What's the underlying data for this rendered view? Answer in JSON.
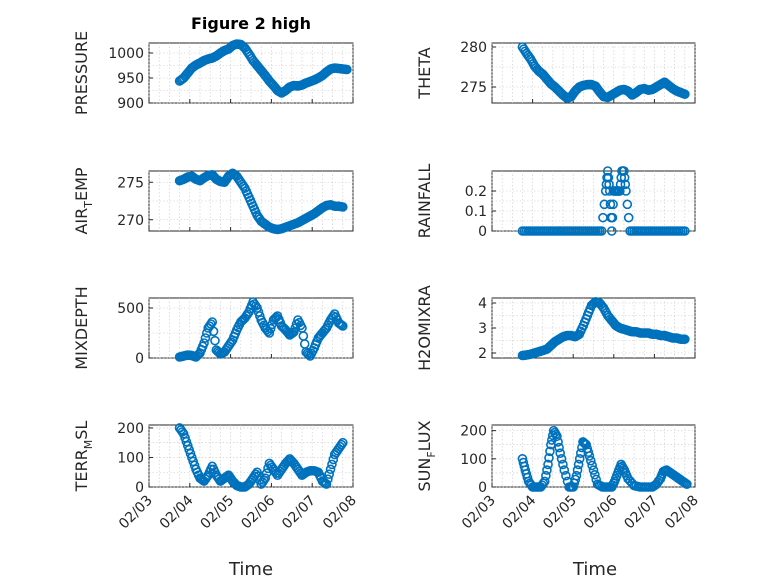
{
  "figure": {
    "title": "Figure 2 high",
    "xlabel": "Time"
  },
  "chart_data": [
    {
      "type": "scatter",
      "panel": "top-left",
      "ylabel": "PRESSURE",
      "title": "Figure 2 high",
      "xlim": [
        "02/03",
        "02/08"
      ],
      "xticks": [
        "02/03",
        "02/04",
        "02/05",
        "02/06",
        "02/07",
        "02/08"
      ],
      "ylim": [
        900,
        1020
      ],
      "yticks": [
        900,
        950,
        1000
      ],
      "x_days": [
        0.75,
        0.85,
        0.95,
        1.05,
        1.15,
        1.25,
        1.35,
        1.45,
        1.55,
        1.65,
        1.75,
        1.85,
        1.95,
        2.05,
        2.15,
        2.25,
        2.35,
        2.45,
        2.55,
        2.65,
        2.75,
        2.85,
        2.95,
        3.05,
        3.15,
        3.25,
        3.35,
        3.45,
        3.55,
        3.65,
        3.75,
        3.85,
        3.95,
        4.05,
        4.15,
        4.25,
        4.35,
        4.45,
        4.55,
        4.65,
        4.75,
        4.85
      ],
      "values": [
        944,
        950,
        960,
        970,
        976,
        980,
        985,
        988,
        990,
        994,
        1000,
        1005,
        1008,
        1015,
        1018,
        1017,
        1010,
        998,
        985,
        975,
        965,
        955,
        944,
        935,
        925,
        920,
        925,
        932,
        935,
        934,
        936,
        940,
        943,
        946,
        950,
        955,
        962,
        968,
        970,
        969,
        968,
        967
      ]
    },
    {
      "type": "scatter",
      "panel": "top-right",
      "ylabel": "THETA",
      "xlim": [
        "02/03",
        "02/08"
      ],
      "xticks": [
        "02/03",
        "02/04",
        "02/05",
        "02/06",
        "02/07",
        "02/08"
      ],
      "ylim": [
        273,
        280.5
      ],
      "yticks": [
        275,
        280
      ],
      "x_days": [
        0.75,
        0.85,
        0.95,
        1.05,
        1.15,
        1.25,
        1.35,
        1.45,
        1.55,
        1.65,
        1.75,
        1.85,
        1.95,
        2.05,
        2.15,
        2.25,
        2.35,
        2.45,
        2.55,
        2.65,
        2.75,
        2.85,
        2.95,
        3.05,
        3.15,
        3.25,
        3.35,
        3.45,
        3.55,
        3.65,
        3.75,
        3.85,
        3.95,
        4.05,
        4.15,
        4.25,
        4.35,
        4.45,
        4.55,
        4.65,
        4.75
      ],
      "values": [
        280,
        279.2,
        278.5,
        277.6,
        277,
        276.6,
        276,
        275.4,
        275,
        274.5,
        274,
        273.6,
        273.8,
        274.5,
        275,
        275.2,
        275.3,
        275.3,
        275.1,
        274.4,
        273.8,
        273.7,
        274.0,
        274.3,
        274.6,
        274.7,
        274.5,
        274.0,
        274.3,
        274.7,
        274.8,
        274.6,
        274.7,
        275.0,
        275.3,
        275.6,
        275.2,
        274.8,
        274.5,
        274.3,
        274.1
      ]
    },
    {
      "type": "scatter",
      "panel": "row2-left",
      "ylabel": "AIR_T_EMP",
      "xlim": [
        "02/03",
        "02/08"
      ],
      "xticks": [
        "02/03",
        "02/04",
        "02/05",
        "02/06",
        "02/07",
        "02/08"
      ],
      "ylim": [
        268.5,
        276.5
      ],
      "yticks": [
        270,
        275
      ],
      "x_days": [
        0.75,
        0.85,
        0.95,
        1.05,
        1.15,
        1.25,
        1.35,
        1.45,
        1.55,
        1.65,
        1.75,
        1.85,
        1.95,
        2.05,
        2.15,
        2.25,
        2.35,
        2.45,
        2.55,
        2.65,
        2.75,
        2.85,
        2.95,
        3.05,
        3.15,
        3.25,
        3.35,
        3.45,
        3.55,
        3.65,
        3.75,
        3.85,
        3.95,
        4.05,
        4.15,
        4.25,
        4.35,
        4.45,
        4.55,
        4.65,
        4.75
      ],
      "values": [
        275.2,
        275.4,
        275.7,
        275.8,
        275.4,
        275.2,
        275.6,
        275.9,
        276.0,
        275.4,
        275.1,
        275.0,
        275.8,
        276.2,
        275.8,
        275.0,
        274.2,
        273.0,
        271.8,
        270.6,
        269.8,
        269.4,
        269.0,
        268.8,
        268.7,
        268.8,
        269.0,
        269.2,
        269.4,
        269.6,
        269.9,
        270.2,
        270.5,
        270.8,
        271.2,
        271.6,
        271.9,
        272.0,
        271.8,
        271.8,
        271.7
      ]
    },
    {
      "type": "scatter",
      "panel": "row2-right",
      "ylabel": "RAINFALL",
      "xlim": [
        "02/03",
        "02/08"
      ],
      "xticks": [
        "02/03",
        "02/04",
        "02/05",
        "02/06",
        "02/07",
        "02/08"
      ],
      "ylim": [
        0,
        0.3
      ],
      "yticks": [
        0,
        0.1,
        0.2
      ],
      "x_days": [
        0.75,
        0.9,
        1.05,
        1.2,
        1.35,
        1.5,
        1.65,
        1.8,
        1.95,
        2.1,
        2.25,
        2.4,
        2.55,
        2.7,
        2.8,
        2.85,
        2.9,
        2.95,
        3.0,
        3.05,
        3.1,
        3.15,
        3.2,
        3.25,
        3.3,
        3.4,
        3.55,
        3.7,
        3.85,
        4.0,
        4.15,
        4.3,
        4.45,
        4.6,
        4.75
      ],
      "values": [
        0,
        0,
        0,
        0,
        0,
        0,
        0,
        0,
        0,
        0,
        0,
        0,
        0,
        0,
        0.2,
        0.3,
        0.2,
        0,
        0.2,
        0.2,
        0.2,
        0.2,
        0.3,
        0.3,
        0.2,
        0,
        0,
        0,
        0,
        0,
        0,
        0,
        0,
        0,
        0
      ]
    },
    {
      "type": "scatter",
      "panel": "row3-left",
      "ylabel": "MIXDEPTH",
      "xlim": [
        "02/03",
        "02/08"
      ],
      "xticks": [
        "02/03",
        "02/04",
        "02/05",
        "02/06",
        "02/07",
        "02/08"
      ],
      "ylim": [
        0,
        600
      ],
      "yticks": [
        0,
        500
      ],
      "x_days": [
        0.75,
        0.85,
        0.95,
        1.05,
        1.15,
        1.25,
        1.35,
        1.45,
        1.55,
        1.65,
        1.75,
        1.85,
        1.95,
        2.05,
        2.15,
        2.25,
        2.35,
        2.45,
        2.55,
        2.65,
        2.75,
        2.85,
        2.95,
        3.05,
        3.15,
        3.25,
        3.35,
        3.45,
        3.55,
        3.65,
        3.75,
        3.85,
        3.95,
        4.05,
        4.15,
        4.25,
        4.35,
        4.45,
        4.55,
        4.65,
        4.75
      ],
      "values": [
        10,
        20,
        30,
        25,
        10,
        50,
        150,
        300,
        360,
        80,
        40,
        60,
        120,
        180,
        280,
        360,
        400,
        460,
        560,
        500,
        380,
        300,
        250,
        380,
        420,
        320,
        280,
        230,
        260,
        380,
        300,
        60,
        20,
        100,
        200,
        250,
        300,
        380,
        440,
        350,
        320
      ]
    },
    {
      "type": "scatter",
      "panel": "row3-right",
      "ylabel": "H2OMIXRA",
      "xlim": [
        "02/03",
        "02/08"
      ],
      "xticks": [
        "02/03",
        "02/04",
        "02/05",
        "02/06",
        "02/07",
        "02/08"
      ],
      "ylim": [
        1.8,
        4.2
      ],
      "yticks": [
        2,
        3,
        4
      ],
      "x_days": [
        0.75,
        0.85,
        0.95,
        1.05,
        1.15,
        1.25,
        1.35,
        1.45,
        1.55,
        1.65,
        1.75,
        1.85,
        1.95,
        2.05,
        2.15,
        2.25,
        2.35,
        2.45,
        2.55,
        2.65,
        2.75,
        2.85,
        2.95,
        3.05,
        3.15,
        3.25,
        3.35,
        3.45,
        3.55,
        3.65,
        3.75,
        3.85,
        3.95,
        4.05,
        4.15,
        4.25,
        4.35,
        4.45,
        4.55,
        4.65,
        4.75
      ],
      "values": [
        1.9,
        1.92,
        1.95,
        2.0,
        2.05,
        2.1,
        2.15,
        2.3,
        2.45,
        2.55,
        2.65,
        2.7,
        2.7,
        2.65,
        2.75,
        3.1,
        3.5,
        3.9,
        4.05,
        4.0,
        3.8,
        3.5,
        3.3,
        3.1,
        3.0,
        2.95,
        2.9,
        2.85,
        2.85,
        2.8,
        2.8,
        2.8,
        2.75,
        2.75,
        2.7,
        2.7,
        2.65,
        2.6,
        2.6,
        2.55,
        2.55
      ]
    },
    {
      "type": "scatter",
      "panel": "bottom-left",
      "ylabel": "TERR_M_SL",
      "xlim": [
        "02/03",
        "02/08"
      ],
      "xticks": [
        "02/03",
        "02/04",
        "02/05",
        "02/06",
        "02/07",
        "02/08"
      ],
      "ylim": [
        0,
        210
      ],
      "yticks": [
        0,
        100,
        200
      ],
      "x_days": [
        0.75,
        0.85,
        0.95,
        1.05,
        1.15,
        1.25,
        1.35,
        1.45,
        1.55,
        1.65,
        1.75,
        1.85,
        1.95,
        2.05,
        2.15,
        2.25,
        2.35,
        2.45,
        2.55,
        2.65,
        2.75,
        2.85,
        2.95,
        3.05,
        3.15,
        3.25,
        3.35,
        3.45,
        3.55,
        3.65,
        3.75,
        3.85,
        3.95,
        4.05,
        4.15,
        4.25,
        4.35,
        4.45,
        4.55,
        4.65,
        4.75
      ],
      "values": [
        200,
        180,
        140,
        100,
        60,
        30,
        20,
        40,
        70,
        40,
        20,
        30,
        40,
        20,
        5,
        0,
        0,
        10,
        30,
        50,
        10,
        30,
        80,
        60,
        40,
        60,
        80,
        95,
        80,
        60,
        40,
        50,
        55,
        55,
        50,
        20,
        10,
        60,
        110,
        130,
        150
      ]
    },
    {
      "type": "scatter",
      "panel": "bottom-right",
      "ylabel": "SUN_F_LUX",
      "xlim": [
        "02/03",
        "02/08"
      ],
      "xticks": [
        "02/03",
        "02/04",
        "02/05",
        "02/06",
        "02/07",
        "02/08"
      ],
      "ylim": [
        0,
        220
      ],
      "yticks": [
        0,
        100,
        200
      ],
      "x_days": [
        0.75,
        0.82,
        0.9,
        1.0,
        1.1,
        1.2,
        1.3,
        1.38,
        1.45,
        1.52,
        1.6,
        1.68,
        1.78,
        1.9,
        2.0,
        2.08,
        2.16,
        2.24,
        2.32,
        2.4,
        2.5,
        2.6,
        2.72,
        2.85,
        2.95,
        3.02,
        3.1,
        3.18,
        3.26,
        3.35,
        3.5,
        3.65,
        3.8,
        3.95,
        4.05,
        4.15,
        4.22,
        4.3,
        4.4,
        4.5,
        4.6,
        4.7,
        4.8
      ],
      "values": [
        100,
        60,
        20,
        0,
        0,
        0,
        20,
        80,
        150,
        200,
        180,
        120,
        60,
        0,
        0,
        40,
        100,
        160,
        150,
        110,
        60,
        10,
        0,
        0,
        0,
        20,
        50,
        80,
        60,
        30,
        5,
        0,
        0,
        0,
        10,
        30,
        55,
        60,
        50,
        40,
        30,
        20,
        10
      ]
    }
  ]
}
